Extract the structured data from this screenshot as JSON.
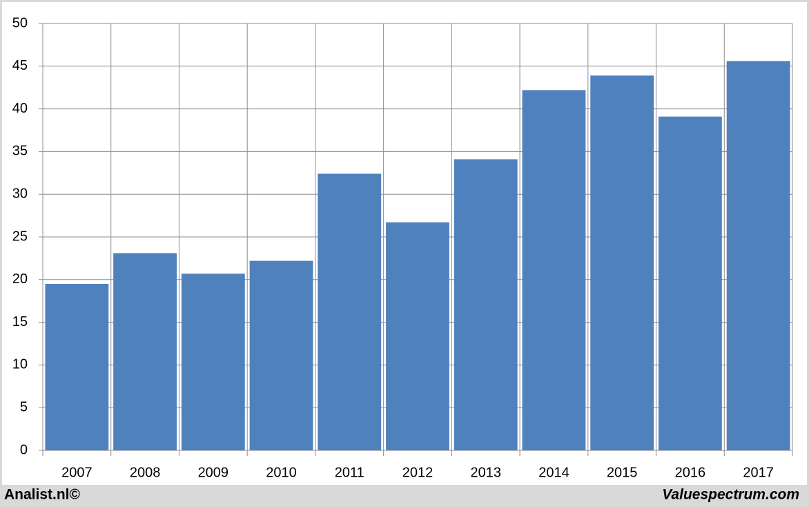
{
  "chart_data": {
    "type": "bar",
    "categories": [
      "2007",
      "2008",
      "2009",
      "2010",
      "2011",
      "2012",
      "2013",
      "2014",
      "2015",
      "2016",
      "2017"
    ],
    "values": [
      19.5,
      23.1,
      20.7,
      22.2,
      32.4,
      26.7,
      34.1,
      42.2,
      43.9,
      39.1,
      45.6
    ],
    "color": "#4f81bd",
    "ylim": [
      0,
      50
    ],
    "yticks": [
      0,
      5,
      10,
      15,
      20,
      25,
      30,
      35,
      40,
      45,
      50
    ],
    "grid": true
  },
  "footer": {
    "left": "Analist.nl©",
    "right": "Valuespectrum.com"
  }
}
